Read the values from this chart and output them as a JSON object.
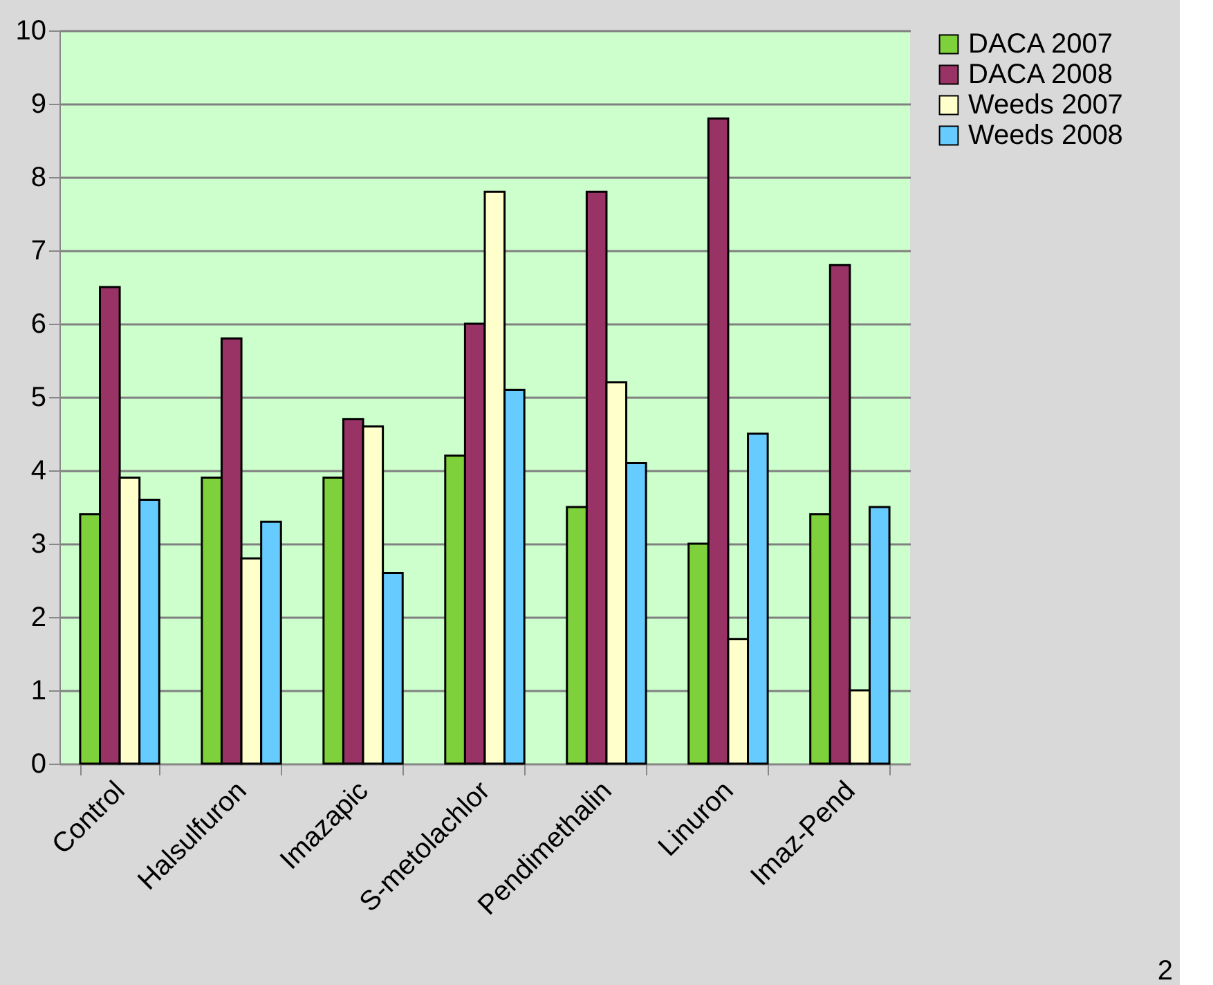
{
  "chart_data": {
    "type": "bar",
    "categories": [
      "Control",
      "Halsulfuron",
      "Imazapic",
      "S-metolachlor",
      "Pendimethalin",
      "Linuron",
      "Imaz-Pend"
    ],
    "series": [
      {
        "name": "DACA 2007",
        "color": "#7fd13b",
        "values": [
          3.4,
          3.9,
          3.9,
          4.2,
          3.5,
          3.0,
          3.4
        ]
      },
      {
        "name": "DACA 2008",
        "color": "#993366",
        "values": [
          6.5,
          5.8,
          4.7,
          6.0,
          7.8,
          8.8,
          6.8
        ]
      },
      {
        "name": "Weeds 2007",
        "color": "#ffffcc",
        "values": [
          3.9,
          2.8,
          4.6,
          7.8,
          5.2,
          1.7,
          1.0
        ]
      },
      {
        "name": "Weeds 2008",
        "color": "#66ccff",
        "values": [
          3.6,
          3.3,
          2.6,
          5.1,
          4.1,
          4.5,
          3.5
        ]
      }
    ],
    "ylim": [
      0,
      10
    ],
    "yticks": [
      0,
      1,
      2,
      3,
      4,
      5,
      6,
      7,
      8,
      9,
      10
    ],
    "grid": "y",
    "legend": "right",
    "annotations": [
      "2"
    ]
  }
}
